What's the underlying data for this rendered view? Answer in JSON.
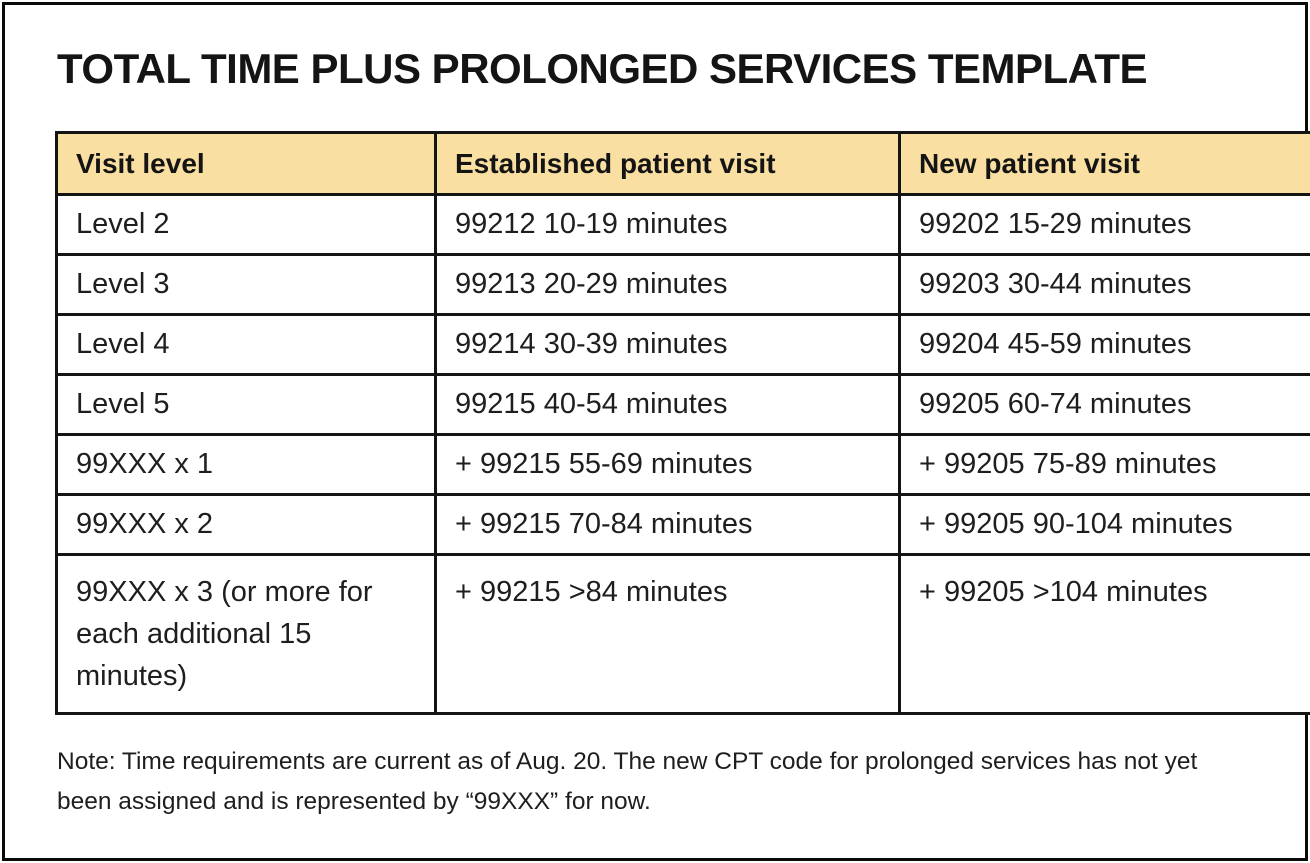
{
  "colors": {
    "header_bg": "#FADFA2",
    "border": "#141414",
    "text": "#1E1E1E",
    "page_bg": "#FFFFFF"
  },
  "chart_data": {
    "type": "table",
    "title": "TOTAL TIME PLUS PROLONGED SERVICES TEMPLATE",
    "columns": [
      "Visit level",
      "Established patient visit",
      "New patient visit"
    ],
    "rows": [
      [
        "Level 2",
        "99212 10-19 minutes",
        "99202 15-29 minutes"
      ],
      [
        "Level 3",
        "99213 20-29 minutes",
        "99203 30-44 minutes"
      ],
      [
        "Level 4",
        "99214 30-39 minutes",
        "99204 45-59 minutes"
      ],
      [
        "Level 5",
        "99215 40-54 minutes",
        "99205 60-74 minutes"
      ],
      [
        "99XXX x 1",
        "+ 99215 55-69 minutes",
        "+ 99205 75-89 minutes"
      ],
      [
        "99XXX x 2",
        "+ 99215 70-84 minutes",
        "+ 99205 90-104 minutes"
      ],
      [
        "99XXX x 3 (or more for each additional 15 minutes)",
        "+ 99215 >84 minutes",
        "+ 99205 >104 minutes"
      ]
    ],
    "note": "Note: Time requirements are current as of Aug. 20. The new CPT code for prolonged services has not yet been assigned and is represented by “99XXX” for now.",
    "layout": {
      "header_row_shaded": true,
      "grid": "all-borders"
    }
  }
}
